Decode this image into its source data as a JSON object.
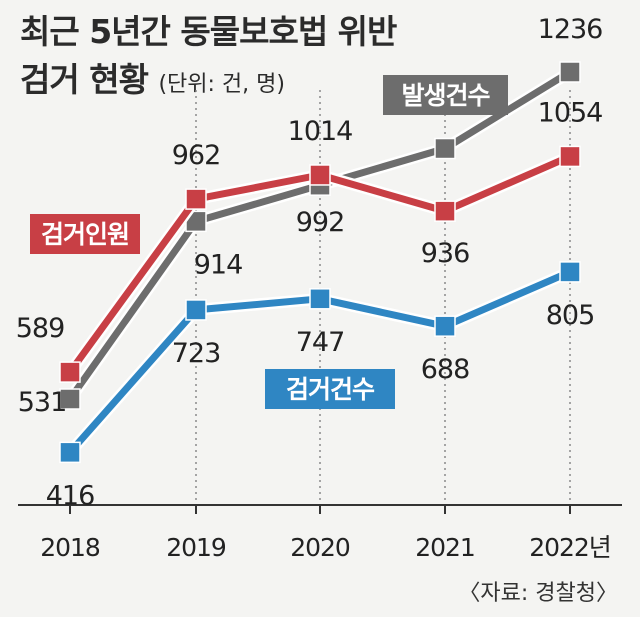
{
  "title": {
    "line1": "최근 5년간 동물보호법 위반",
    "line2": "검거 현황",
    "unit": "(단위: 건, 명)"
  },
  "source": "〈자료: 경찰청〉",
  "chart_data": {
    "type": "line",
    "title": "최근 5년간 동물보호법 위반 검거 현황",
    "unit": "(단위: 건, 명)",
    "categories": [
      "2018",
      "2019",
      "2020",
      "2021",
      "2022년"
    ],
    "ylim": [
      350,
      1300
    ],
    "grid": "vertical dotted",
    "series": [
      {
        "name": "발생건수",
        "color": "#6d6d6d",
        "values": [
          531,
          914,
          992,
          1071,
          1236
        ]
      },
      {
        "name": "검거인원",
        "color": "#c83f45",
        "values": [
          589,
          962,
          1014,
          936,
          1054
        ]
      },
      {
        "name": "검거건수",
        "color": "#2f86c3",
        "values": [
          416,
          723,
          747,
          688,
          805
        ]
      }
    ]
  }
}
